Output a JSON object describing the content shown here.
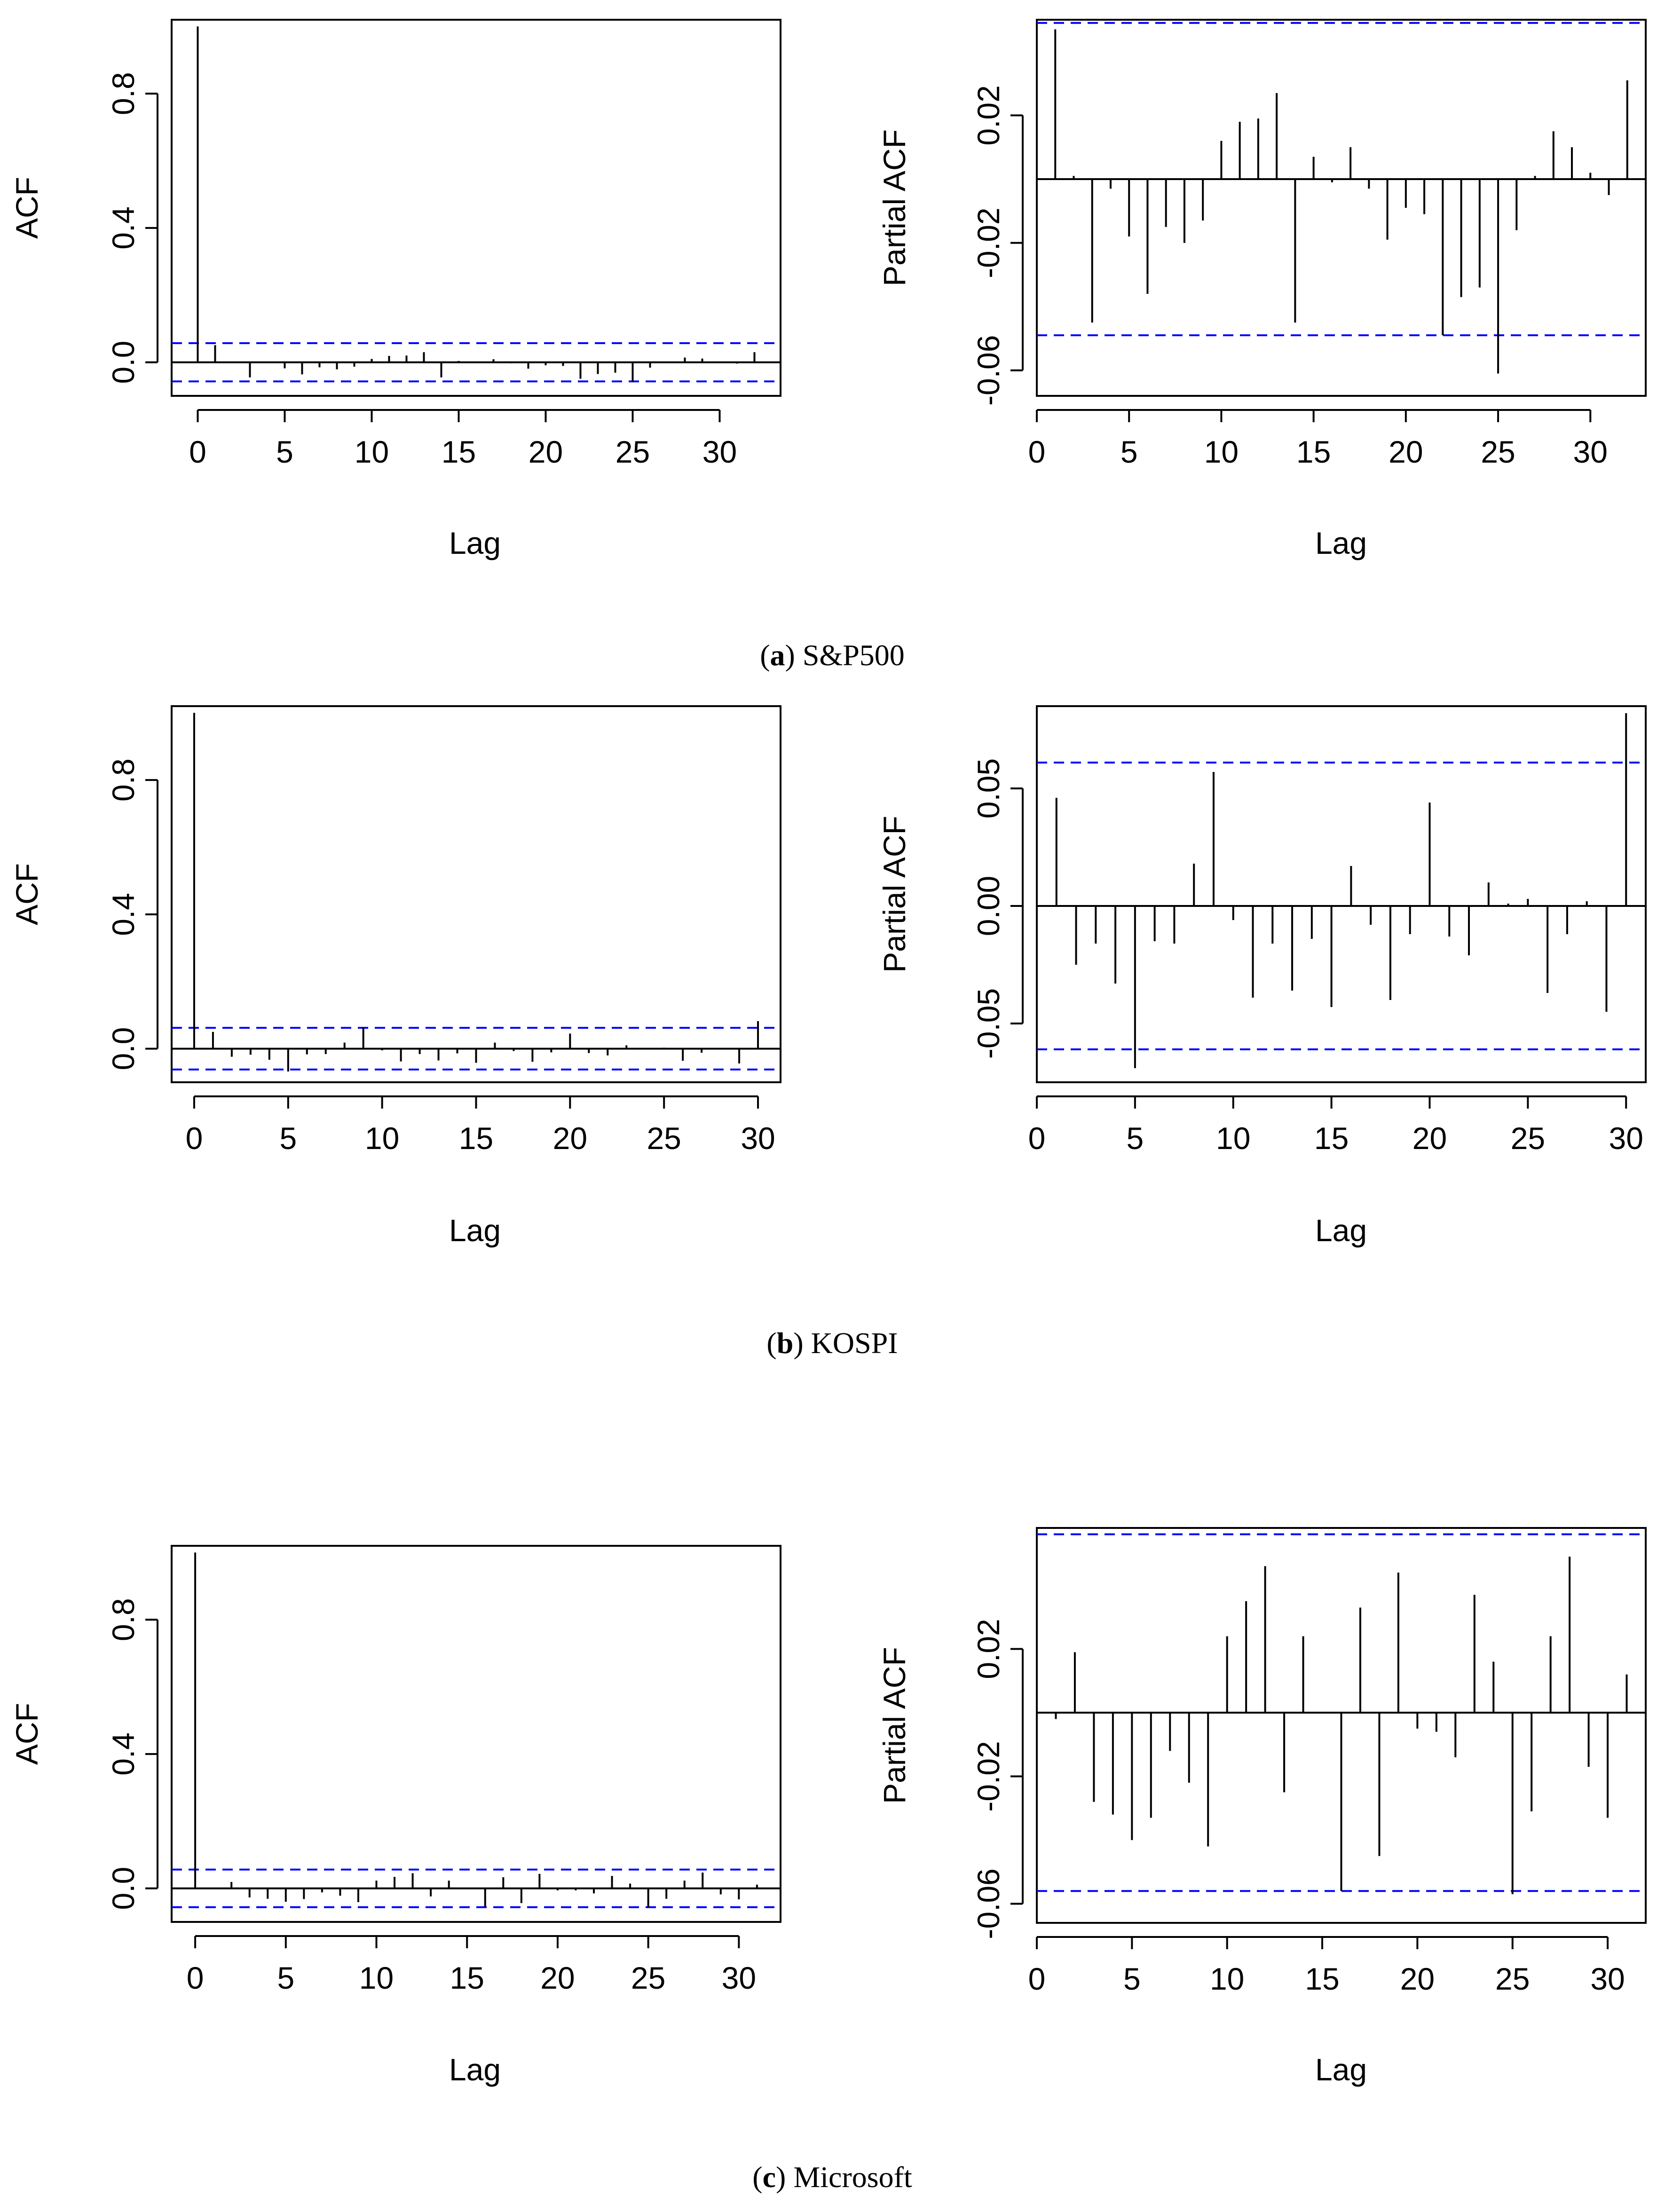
{
  "figure": {
    "panels": [
      {
        "caption": {
          "letter": "a",
          "text": " S&P500"
        },
        "acf": {
          "type": "bar",
          "ylabel": "ACF",
          "xlabel": "Lag",
          "xlim": [
            -1.5,
            33.5
          ],
          "ylim": [
            -0.1,
            1.02
          ],
          "xticks": [
            "0",
            "5",
            "10",
            "15",
            "20",
            "25",
            "30"
          ],
          "yticks": [
            "0.0",
            "0.4",
            "0.8"
          ],
          "ci": 0.057,
          "lags": [
            0,
            1,
            2,
            3,
            4,
            5,
            6,
            7,
            8,
            9,
            10,
            11,
            12,
            13,
            14,
            15,
            16,
            17,
            18,
            19,
            20,
            21,
            22,
            23,
            24,
            25,
            26,
            27,
            28,
            29,
            30,
            31,
            32
          ],
          "values": [
            1.0,
            0.051,
            0.001,
            -0.045,
            0.0,
            -0.018,
            -0.036,
            -0.015,
            -0.021,
            -0.013,
            0.01,
            0.019,
            0.02,
            0.03,
            -0.045,
            0.004,
            0.001,
            0.009,
            -0.003,
            -0.019,
            -0.009,
            -0.011,
            -0.049,
            -0.035,
            -0.031,
            -0.059,
            -0.016,
            0.001,
            0.014,
            0.011,
            0.002,
            -0.004,
            0.03
          ]
        },
        "pacf": {
          "type": "bar",
          "ylabel": "Partial ACF",
          "xlabel": "Lag",
          "xlim": [
            0,
            33
          ],
          "ylim": [
            -0.068,
            0.05
          ],
          "xticks": [
            "0",
            "5",
            "10",
            "15",
            "20",
            "25",
            "30"
          ],
          "yticks": [
            "-0.06",
            "-0.02",
            "0.02"
          ],
          "ci": 0.049,
          "lags": [
            1,
            2,
            3,
            4,
            5,
            6,
            7,
            8,
            9,
            10,
            11,
            12,
            13,
            14,
            15,
            16,
            17,
            18,
            19,
            20,
            21,
            22,
            23,
            24,
            25,
            26,
            27,
            28,
            29,
            30,
            31,
            32
          ],
          "values": [
            0.047,
            0.001,
            -0.045,
            -0.003,
            -0.018,
            -0.036,
            -0.015,
            -0.02,
            -0.013,
            0.012,
            0.018,
            0.019,
            0.027,
            -0.045,
            0.007,
            -0.001,
            0.01,
            -0.003,
            -0.019,
            -0.009,
            -0.011,
            -0.049,
            -0.037,
            -0.034,
            -0.061,
            -0.016,
            0.001,
            0.015,
            0.01,
            0.002,
            -0.005,
            0.031
          ]
        }
      },
      {
        "caption": {
          "letter": "b",
          "text": " KOSPI"
        },
        "acf": {
          "type": "bar",
          "ylabel": "ACF",
          "xlabel": "Lag",
          "xlim": [
            -1.2,
            31.2
          ],
          "ylim": [
            -0.1,
            1.02
          ],
          "xticks": [
            "0",
            "5",
            "10",
            "15",
            "20",
            "25",
            "30"
          ],
          "yticks": [
            "0.0",
            "0.4",
            "0.8"
          ],
          "ci": 0.062,
          "lags": [
            0,
            1,
            2,
            3,
            4,
            5,
            6,
            7,
            8,
            9,
            10,
            11,
            12,
            13,
            14,
            15,
            16,
            17,
            18,
            19,
            20,
            21,
            22,
            23,
            24,
            25,
            26,
            27,
            28,
            29,
            30
          ],
          "values": [
            1.0,
            0.05,
            -0.024,
            -0.018,
            -0.033,
            -0.068,
            -0.017,
            -0.016,
            0.018,
            0.064,
            -0.005,
            -0.038,
            -0.016,
            -0.035,
            -0.014,
            -0.042,
            0.018,
            -0.007,
            -0.039,
            -0.011,
            0.045,
            -0.013,
            -0.02,
            0.01,
            0.001,
            0.003,
            -0.036,
            -0.012,
            0.002,
            -0.044,
            0.082
          ]
        },
        "pacf": {
          "type": "bar",
          "ylabel": "Partial ACF",
          "xlabel": "Lag",
          "xlim": [
            0,
            31
          ],
          "ylim": [
            -0.075,
            0.085
          ],
          "xticks": [
            "0",
            "5",
            "10",
            "15",
            "20",
            "25",
            "30"
          ],
          "yticks": [
            "-0.05",
            "0.00",
            "0.05"
          ],
          "ci": 0.061,
          "lags": [
            1,
            2,
            3,
            4,
            5,
            6,
            7,
            8,
            9,
            10,
            11,
            12,
            13,
            14,
            15,
            16,
            17,
            18,
            19,
            20,
            21,
            22,
            23,
            24,
            25,
            26,
            27,
            28,
            29,
            30
          ],
          "values": [
            0.046,
            -0.025,
            -0.016,
            -0.033,
            -0.069,
            -0.015,
            -0.016,
            0.018,
            0.057,
            -0.006,
            -0.039,
            -0.016,
            -0.036,
            -0.014,
            -0.043,
            0.017,
            -0.008,
            -0.04,
            -0.012,
            0.044,
            -0.013,
            -0.021,
            0.01,
            0.001,
            0.003,
            -0.037,
            -0.012,
            0.002,
            -0.045,
            0.082
          ]
        }
      },
      {
        "caption": {
          "letter": "c",
          "text": " Microsoft"
        },
        "acf": {
          "type": "bar",
          "ylabel": "ACF",
          "xlabel": "Lag",
          "xlim": [
            -1.3,
            32.3
          ],
          "ylim": [
            -0.1,
            1.02
          ],
          "xticks": [
            "0",
            "5",
            "10",
            "15",
            "20",
            "25",
            "30"
          ],
          "yticks": [
            "0.0",
            "0.4",
            "0.8"
          ],
          "ci": 0.056,
          "lags": [
            0,
            1,
            2,
            3,
            4,
            5,
            6,
            7,
            8,
            9,
            10,
            11,
            12,
            13,
            14,
            15,
            16,
            17,
            18,
            19,
            20,
            21,
            22,
            23,
            24,
            25,
            26,
            27,
            28,
            29,
            30,
            31
          ],
          "values": [
            1.0,
            -0.002,
            0.019,
            -0.027,
            -0.031,
            -0.04,
            -0.032,
            -0.012,
            -0.022,
            -0.041,
            0.023,
            0.034,
            0.045,
            -0.024,
            0.023,
            0.0,
            -0.055,
            0.033,
            -0.044,
            0.043,
            -0.006,
            -0.006,
            -0.015,
            0.037,
            0.014,
            -0.056,
            -0.031,
            0.023,
            0.047,
            -0.018,
            -0.033,
            0.011
          ]
        },
        "pacf": {
          "type": "bar",
          "ylabel": "Partial ACF",
          "xlabel": "Lag",
          "xlim": [
            0,
            32
          ],
          "ylim": [
            -0.066,
            0.058
          ],
          "xticks": [
            "0",
            "5",
            "10",
            "15",
            "20",
            "25",
            "30"
          ],
          "yticks": [
            "-0.06",
            "-0.02",
            "0.02"
          ],
          "ci": 0.056,
          "lags": [
            1,
            2,
            3,
            4,
            5,
            6,
            7,
            8,
            9,
            10,
            11,
            12,
            13,
            14,
            15,
            16,
            17,
            18,
            19,
            20,
            21,
            22,
            23,
            24,
            25,
            26,
            27,
            28,
            29,
            30,
            31
          ],
          "values": [
            -0.002,
            0.019,
            -0.028,
            -0.032,
            -0.04,
            -0.033,
            -0.012,
            -0.022,
            -0.042,
            0.024,
            0.035,
            0.046,
            -0.025,
            0.024,
            0.0,
            -0.056,
            0.033,
            -0.045,
            0.044,
            -0.005,
            -0.006,
            -0.014,
            0.037,
            0.016,
            -0.057,
            -0.031,
            0.024,
            0.049,
            -0.017,
            -0.033,
            0.012
          ]
        }
      }
    ]
  }
}
